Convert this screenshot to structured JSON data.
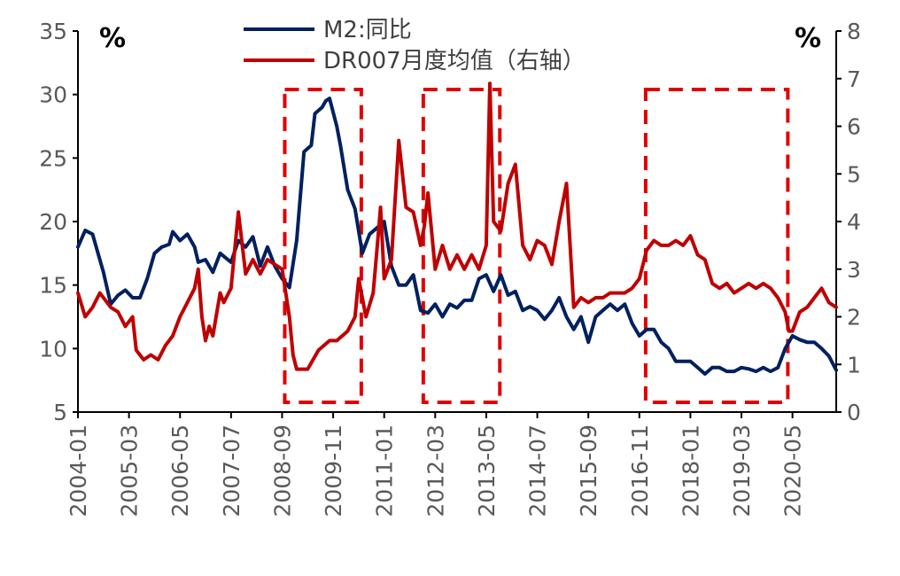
{
  "chart_data": {
    "type": "line",
    "left_axis": {
      "unit": "%",
      "ylim": [
        5,
        35
      ],
      "ticks": [
        5,
        10,
        15,
        20,
        25,
        30,
        35
      ]
    },
    "right_axis": {
      "unit": "%",
      "ylim": [
        0,
        8
      ],
      "ticks": [
        0,
        1,
        2,
        3,
        4,
        5,
        6,
        7,
        8
      ]
    },
    "x_ticks": [
      "2004-01",
      "2005-03",
      "2006-05",
      "2007-07",
      "2008-09",
      "2009-11",
      "2011-01",
      "2012-03",
      "2013-05",
      "2014-07",
      "2015-09",
      "2016-11",
      "2018-01",
      "2019-03",
      "2020-05"
    ],
    "series": [
      {
        "name": "M2:同比",
        "axis": "left",
        "color": "#002060",
        "points": [
          [
            "2004-01",
            18.0
          ],
          [
            "2004-03",
            19.3
          ],
          [
            "2004-05",
            19.0
          ],
          [
            "2004-08",
            16.0
          ],
          [
            "2004-10",
            13.5
          ],
          [
            "2004-12",
            14.2
          ],
          [
            "2005-02",
            14.6
          ],
          [
            "2005-04",
            14.0
          ],
          [
            "2005-06",
            14.0
          ],
          [
            "2005-08",
            15.5
          ],
          [
            "2005-10",
            17.5
          ],
          [
            "2005-12",
            18.0
          ],
          [
            "2006-02",
            18.2
          ],
          [
            "2006-03",
            19.2
          ],
          [
            "2006-05",
            18.5
          ],
          [
            "2006-07",
            19.0
          ],
          [
            "2006-09",
            18.0
          ],
          [
            "2006-10",
            16.8
          ],
          [
            "2006-12",
            17.0
          ],
          [
            "2007-02",
            16.0
          ],
          [
            "2007-04",
            17.5
          ],
          [
            "2007-07",
            16.8
          ],
          [
            "2007-09",
            18.5
          ],
          [
            "2007-11",
            18.0
          ],
          [
            "2008-01",
            18.8
          ],
          [
            "2008-03",
            16.5
          ],
          [
            "2008-05",
            18.0
          ],
          [
            "2008-07",
            16.5
          ],
          [
            "2008-09",
            15.5
          ],
          [
            "2008-11",
            14.8
          ],
          [
            "2009-01",
            18.5
          ],
          [
            "2009-03",
            25.5
          ],
          [
            "2009-05",
            26.0
          ],
          [
            "2009-06",
            28.5
          ],
          [
            "2009-08",
            29.0
          ],
          [
            "2009-09",
            29.5
          ],
          [
            "2009-10",
            29.7
          ],
          [
            "2009-12",
            27.5
          ],
          [
            "2010-01",
            26.0
          ],
          [
            "2010-03",
            22.5
          ],
          [
            "2010-05",
            21.0
          ],
          [
            "2010-07",
            17.5
          ],
          [
            "2010-09",
            19.0
          ],
          [
            "2010-11",
            19.5
          ],
          [
            "2011-01",
            20.0
          ],
          [
            "2011-03",
            16.5
          ],
          [
            "2011-05",
            15.0
          ],
          [
            "2011-07",
            15.0
          ],
          [
            "2011-09",
            15.8
          ],
          [
            "2011-11",
            13.0
          ],
          [
            "2012-01",
            12.8
          ],
          [
            "2012-03",
            13.5
          ],
          [
            "2012-05",
            12.5
          ],
          [
            "2012-07",
            13.5
          ],
          [
            "2012-09",
            13.2
          ],
          [
            "2012-11",
            13.8
          ],
          [
            "2013-01",
            13.8
          ],
          [
            "2013-03",
            15.5
          ],
          [
            "2013-05",
            15.8
          ],
          [
            "2013-07",
            14.5
          ],
          [
            "2013-09",
            15.8
          ],
          [
            "2013-11",
            14.2
          ],
          [
            "2014-01",
            14.5
          ],
          [
            "2014-03",
            13.0
          ],
          [
            "2014-05",
            13.3
          ],
          [
            "2014-07",
            13.0
          ],
          [
            "2014-09",
            12.3
          ],
          [
            "2014-11",
            13.0
          ],
          [
            "2015-01",
            14.0
          ],
          [
            "2015-03",
            12.5
          ],
          [
            "2015-05",
            11.5
          ],
          [
            "2015-07",
            12.5
          ],
          [
            "2015-09",
            10.5
          ],
          [
            "2015-11",
            12.5
          ],
          [
            "2016-01",
            13.0
          ],
          [
            "2016-03",
            13.5
          ],
          [
            "2016-05",
            13.0
          ],
          [
            "2016-07",
            13.5
          ],
          [
            "2016-09",
            12.0
          ],
          [
            "2016-11",
            11.0
          ],
          [
            "2017-01",
            11.5
          ],
          [
            "2017-03",
            11.5
          ],
          [
            "2017-05",
            10.5
          ],
          [
            "2017-07",
            10.0
          ],
          [
            "2017-09",
            9.0
          ],
          [
            "2017-11",
            9.0
          ],
          [
            "2018-01",
            9.0
          ],
          [
            "2018-03",
            8.5
          ],
          [
            "2018-05",
            8.0
          ],
          [
            "2018-07",
            8.5
          ],
          [
            "2018-09",
            8.5
          ],
          [
            "2018-11",
            8.2
          ],
          [
            "2019-01",
            8.2
          ],
          [
            "2019-03",
            8.5
          ],
          [
            "2019-05",
            8.4
          ],
          [
            "2019-07",
            8.2
          ],
          [
            "2019-09",
            8.5
          ],
          [
            "2019-11",
            8.2
          ],
          [
            "2020-01",
            8.5
          ],
          [
            "2020-03",
            10.0
          ],
          [
            "2020-05",
            11.0
          ],
          [
            "2020-07",
            10.7
          ],
          [
            "2020-09",
            10.5
          ],
          [
            "2020-11",
            10.5
          ],
          [
            "2021-01",
            10.0
          ],
          [
            "2021-03",
            9.4
          ],
          [
            "2021-05",
            8.3
          ]
        ]
      },
      {
        "name": "DR007月度均值（右轴）",
        "axis": "right",
        "color": "#C00000",
        "points": [
          [
            "2004-01",
            2.5
          ],
          [
            "2004-03",
            2.0
          ],
          [
            "2004-05",
            2.2
          ],
          [
            "2004-07",
            2.5
          ],
          [
            "2004-10",
            2.2
          ],
          [
            "2004-12",
            2.1
          ],
          [
            "2005-02",
            1.8
          ],
          [
            "2005-04",
            2.0
          ],
          [
            "2005-05",
            1.3
          ],
          [
            "2005-07",
            1.1
          ],
          [
            "2005-09",
            1.2
          ],
          [
            "2005-11",
            1.1
          ],
          [
            "2006-01",
            1.4
          ],
          [
            "2006-03",
            1.6
          ],
          [
            "2006-05",
            2.0
          ],
          [
            "2006-07",
            2.3
          ],
          [
            "2006-09",
            2.6
          ],
          [
            "2006-10",
            3.0
          ],
          [
            "2006-11",
            2.0
          ],
          [
            "2006-12",
            1.5
          ],
          [
            "2007-01",
            1.8
          ],
          [
            "2007-02",
            1.6
          ],
          [
            "2007-04",
            2.5
          ],
          [
            "2007-05",
            2.3
          ],
          [
            "2007-07",
            2.6
          ],
          [
            "2007-09",
            4.2
          ],
          [
            "2007-11",
            2.9
          ],
          [
            "2008-01",
            3.2
          ],
          [
            "2008-03",
            2.9
          ],
          [
            "2008-05",
            3.2
          ],
          [
            "2008-07",
            3.1
          ],
          [
            "2008-09",
            3.0
          ],
          [
            "2008-11",
            2.0
          ],
          [
            "2008-12",
            1.2
          ],
          [
            "2009-01",
            0.9
          ],
          [
            "2009-04",
            0.9
          ],
          [
            "2009-07",
            1.3
          ],
          [
            "2009-10",
            1.5
          ],
          [
            "2009-12",
            1.5
          ],
          [
            "2010-03",
            1.7
          ],
          [
            "2010-05",
            2.0
          ],
          [
            "2010-06",
            2.8
          ],
          [
            "2010-08",
            2.0
          ],
          [
            "2010-10",
            2.5
          ],
          [
            "2010-11",
            3.4
          ],
          [
            "2010-12",
            4.3
          ],
          [
            "2011-01",
            2.8
          ],
          [
            "2011-03",
            3.2
          ],
          [
            "2011-05",
            5.7
          ],
          [
            "2011-07",
            4.3
          ],
          [
            "2011-09",
            4.2
          ],
          [
            "2011-11",
            3.5
          ],
          [
            "2011-12",
            3.9
          ],
          [
            "2012-01",
            4.6
          ],
          [
            "2012-03",
            3.0
          ],
          [
            "2012-05",
            3.5
          ],
          [
            "2012-07",
            3.0
          ],
          [
            "2012-09",
            3.3
          ],
          [
            "2012-11",
            3.0
          ],
          [
            "2013-01",
            3.3
          ],
          [
            "2013-03",
            3.0
          ],
          [
            "2013-05",
            3.5
          ],
          [
            "2013-06",
            6.9
          ],
          [
            "2013-07",
            4.0
          ],
          [
            "2013-09",
            3.8
          ],
          [
            "2013-11",
            4.8
          ],
          [
            "2014-01",
            5.2
          ],
          [
            "2014-03",
            3.5
          ],
          [
            "2014-05",
            3.2
          ],
          [
            "2014-07",
            3.6
          ],
          [
            "2014-09",
            3.5
          ],
          [
            "2014-11",
            3.1
          ],
          [
            "2015-01",
            4.0
          ],
          [
            "2015-03",
            4.8
          ],
          [
            "2015-05",
            2.2
          ],
          [
            "2015-07",
            2.4
          ],
          [
            "2015-09",
            2.3
          ],
          [
            "2015-11",
            2.4
          ],
          [
            "2016-01",
            2.4
          ],
          [
            "2016-03",
            2.5
          ],
          [
            "2016-05",
            2.5
          ],
          [
            "2016-07",
            2.5
          ],
          [
            "2016-09",
            2.6
          ],
          [
            "2016-11",
            2.8
          ],
          [
            "2017-01",
            3.4
          ],
          [
            "2017-03",
            3.6
          ],
          [
            "2017-05",
            3.5
          ],
          [
            "2017-07",
            3.5
          ],
          [
            "2017-09",
            3.6
          ],
          [
            "2017-11",
            3.5
          ],
          [
            "2018-01",
            3.7
          ],
          [
            "2018-03",
            3.3
          ],
          [
            "2018-05",
            3.2
          ],
          [
            "2018-07",
            2.7
          ],
          [
            "2018-09",
            2.6
          ],
          [
            "2018-11",
            2.7
          ],
          [
            "2019-01",
            2.5
          ],
          [
            "2019-03",
            2.6
          ],
          [
            "2019-05",
            2.7
          ],
          [
            "2019-07",
            2.6
          ],
          [
            "2019-09",
            2.7
          ],
          [
            "2019-11",
            2.6
          ],
          [
            "2020-01",
            2.4
          ],
          [
            "2020-03",
            2.1
          ],
          [
            "2020-04",
            1.7
          ],
          [
            "2020-05",
            1.7
          ],
          [
            "2020-07",
            2.1
          ],
          [
            "2020-09",
            2.2
          ],
          [
            "2020-11",
            2.4
          ],
          [
            "2021-01",
            2.6
          ],
          [
            "2021-03",
            2.3
          ],
          [
            "2021-05",
            2.2
          ]
        ]
      }
    ],
    "highlight_periods": [
      {
        "start": "2008-09",
        "end": "2010-06"
      },
      {
        "start": "2011-11",
        "end": "2013-08"
      },
      {
        "start": "2016-12",
        "end": "2020-03"
      }
    ],
    "grid": false,
    "legend_position": "top-center"
  }
}
